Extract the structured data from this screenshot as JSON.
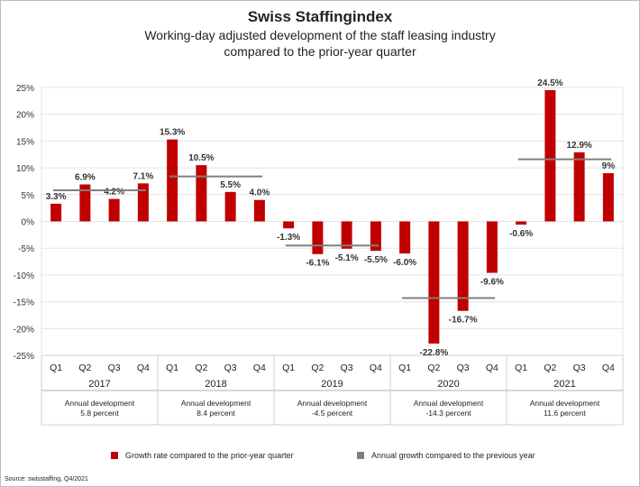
{
  "chart_data": {
    "type": "bar",
    "title": "Swiss Staffingindex",
    "subtitle_line1": "Working-day adjusted development of the staff leasing industry",
    "subtitle_line2": "compared to the prior-year quarter",
    "ylim": [
      -25,
      25
    ],
    "yticks": [
      "25%",
      "20%",
      "15%",
      "10%",
      "5%",
      "0%",
      "-5%",
      "-10%",
      "-15%",
      "-20%",
      "-25%"
    ],
    "grid": true,
    "quarters": [
      "Q1",
      "Q2",
      "Q3",
      "Q4"
    ],
    "years": [
      {
        "year": "2017",
        "values": [
          3.3,
          6.9,
          4.2,
          7.1
        ],
        "labels": [
          "3.3%",
          "6.9%",
          "4.2%",
          "7.1%"
        ],
        "annual": 5.8,
        "annual_line1": "Annual development",
        "annual_line2": "5.8 percent"
      },
      {
        "year": "2018",
        "values": [
          15.3,
          10.5,
          5.5,
          4.0
        ],
        "labels": [
          "15.3%",
          "10.5%",
          "5.5%",
          "4.0%"
        ],
        "annual": 8.4,
        "annual_line1": "Annual development",
        "annual_line2": "8.4 percent"
      },
      {
        "year": "2019",
        "values": [
          -1.3,
          -6.1,
          -5.1,
          -5.5
        ],
        "labels": [
          "-1.3%",
          "-6.1%",
          "-5.1%",
          "-5.5%"
        ],
        "annual": -4.5,
        "annual_line1": "Annual development",
        "annual_line2": "-4.5 percent"
      },
      {
        "year": "2020",
        "values": [
          -6.0,
          -22.8,
          -16.7,
          -9.6
        ],
        "labels": [
          "-6.0%",
          "-22.8%",
          "-16.7%",
          "-9.6%"
        ],
        "annual": -14.3,
        "annual_line1": "Annual development",
        "annual_line2": "-14.3 percent"
      },
      {
        "year": "2021",
        "values": [
          -0.6,
          24.5,
          12.9,
          9
        ],
        "labels": [
          "-0.6%",
          "24.5%",
          "12.9%",
          "9%"
        ],
        "annual": 11.6,
        "annual_line1": "Annual development",
        "annual_line2": "11.6 percent"
      }
    ],
    "legend": [
      {
        "name": "Growth rate compared to the prior-year quarter",
        "color": "#c00000"
      },
      {
        "name": "Annual growth compared to the previous year",
        "color": "#7f7f7f"
      }
    ],
    "legend_placement": "bottom",
    "source": "Source: swisstaffing, Q4/2021"
  }
}
